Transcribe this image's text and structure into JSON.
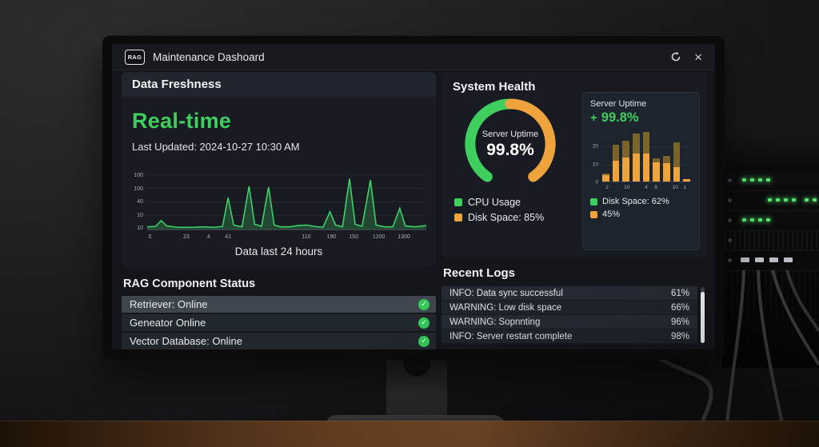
{
  "colors": {
    "green": "#3ecf5f",
    "orange": "#efa33c",
    "bar_top": "#7a6429",
    "led_green": "#57e76f"
  },
  "titlebar": {
    "logo": "RAG",
    "title": "Maintenance Dashoard",
    "close_glyph": "×"
  },
  "data_freshness": {
    "title": "Data Freshness",
    "status": "Real-time",
    "last_updated": "Last Updated: 2024-10-27 10:30 AM",
    "caption": "Data last 24 hours"
  },
  "component_status": {
    "title": "RAG Component Status",
    "check_glyph": "✓",
    "items": [
      {
        "label": "Retriever: Online",
        "highlighted": true
      },
      {
        "label": "Geneator Online",
        "highlighted": false
      },
      {
        "label": "Vector Database: Online",
        "highlighted": false
      }
    ]
  },
  "system_health": {
    "title": "System Health",
    "gauge_label": "Server Uptime",
    "gauge_value": "99.8%",
    "legend": [
      {
        "label": "CPU Usage",
        "color": "#3ecf5f"
      },
      {
        "label": "Disk Space: 85%",
        "color": "#efa33c"
      }
    ]
  },
  "server_uptime": {
    "title": "Server Uptime",
    "plus_glyph": "+",
    "delta": "99.8%",
    "legend": [
      {
        "label": "Disk Space: 62%",
        "color": "#3ecf5f"
      },
      {
        "label": "45%",
        "color": "#efa33c"
      }
    ]
  },
  "recent_logs": {
    "title": "Recent Logs",
    "entries": [
      {
        "message": "INFO: Data sync successful",
        "value": "61%"
      },
      {
        "message": "WARNING: Low disk space",
        "value": "66%"
      },
      {
        "message": "WARNING: Sopnnting",
        "value": "96%"
      },
      {
        "message": "INFO: Server restart complete",
        "value": "98%"
      }
    ]
  },
  "chart_data": [
    {
      "id": "freshness-line",
      "type": "area",
      "title": "Data last 24 hours",
      "ylim": [
        0,
        125
      ],
      "yticks": [
        "100",
        "100",
        "40",
        "10",
        "10"
      ],
      "xticks": [
        {
          "label": "0",
          "pos": 1
        },
        {
          "label": "23",
          "pos": 14
        },
        {
          "label": "4",
          "pos": 22
        },
        {
          "label": "41",
          "pos": 29
        },
        {
          "label": "110",
          "pos": 57
        },
        {
          "label": "190",
          "pos": 66
        },
        {
          "label": "150",
          "pos": 74
        },
        {
          "label": "1200",
          "pos": 83
        },
        {
          "label": "1300",
          "pos": 92
        }
      ],
      "line_color": "#3ecf68",
      "fill_color": "rgba(62,205,104,0.25)",
      "points": [
        [
          0,
          6
        ],
        [
          3,
          7
        ],
        [
          5,
          20
        ],
        [
          7,
          8
        ],
        [
          11,
          5
        ],
        [
          16,
          5
        ],
        [
          20,
          6
        ],
        [
          24,
          5
        ],
        [
          27,
          7
        ],
        [
          29,
          72
        ],
        [
          31,
          10
        ],
        [
          34,
          6
        ],
        [
          36.5,
          98
        ],
        [
          38.5,
          12
        ],
        [
          41,
          7
        ],
        [
          43.5,
          96
        ],
        [
          45.5,
          10
        ],
        [
          48,
          6
        ],
        [
          51,
          6
        ],
        [
          54,
          9
        ],
        [
          57,
          10
        ],
        [
          60,
          7
        ],
        [
          63,
          5
        ],
        [
          65.5,
          40
        ],
        [
          67.5,
          10
        ],
        [
          70,
          6
        ],
        [
          72.5,
          115
        ],
        [
          74.5,
          12
        ],
        [
          77,
          7
        ],
        [
          80,
          112
        ],
        [
          82,
          10
        ],
        [
          85,
          6
        ],
        [
          88,
          6
        ],
        [
          90.5,
          48
        ],
        [
          92.5,
          8
        ],
        [
          96,
          6
        ],
        [
          100,
          9
        ]
      ]
    },
    {
      "id": "uptime-bars",
      "type": "bar",
      "stacked": true,
      "ylim": [
        0,
        29
      ],
      "yticks": [
        {
          "label": "20",
          "val": 20
        },
        {
          "label": "10",
          "val": 10
        },
        {
          "label": "0",
          "val": 0
        }
      ],
      "xticks": [
        {
          "label": "2",
          "pos": 5.5
        },
        {
          "label": "10",
          "pos": 28
        },
        {
          "label": "4",
          "pos": 50
        },
        {
          "label": "8",
          "pos": 61
        },
        {
          "label": "10",
          "pos": 83
        },
        {
          "label": "1",
          "pos": 94
        }
      ],
      "series": [
        {
          "name": "lower",
          "color": "#efa33c",
          "values": [
            3.5,
            12,
            13.5,
            16,
            16,
            11,
            10.5,
            8,
            1.2
          ]
        },
        {
          "name": "upper",
          "color": "#7a6429",
          "values": [
            1,
            9,
            9.5,
            11,
            12,
            2,
            4,
            14,
            0.3
          ]
        }
      ]
    }
  ]
}
